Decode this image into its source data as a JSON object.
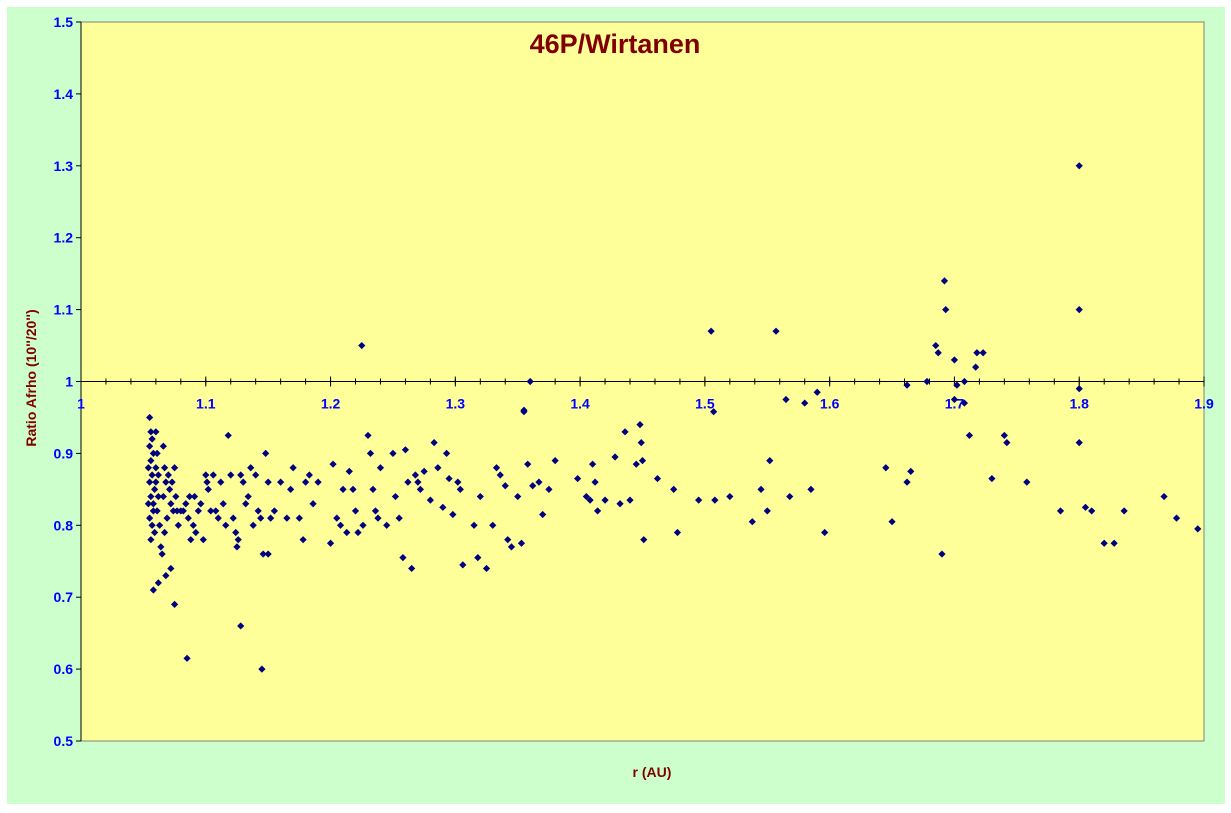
{
  "chart_data": {
    "type": "scatter",
    "title": "46P/Wirtanen",
    "xlabel": "r (AU)",
    "ylabel": "Ratio Afrho (10''/20'')",
    "xlim": [
      1.0,
      1.9
    ],
    "ylim": [
      0.5,
      1.5
    ],
    "x_ticks": [
      "1",
      "1.1",
      "1.2",
      "1.3",
      "1.4",
      "1.5",
      "1.6",
      "1.7",
      "1.8",
      "1.9"
    ],
    "y_ticks": [
      "0.5",
      "0.6",
      "0.7",
      "0.8",
      "0.9",
      "1",
      "1.1",
      "1.2",
      "1.3",
      "1.4",
      "1.5"
    ],
    "x_axis_crosses_at": 1.0,
    "grid": false,
    "colors": {
      "plot_bg": "#ffff99",
      "chart_bg": "#ccffcc",
      "marker": "#000080",
      "tick_text": "#0000ff",
      "title_text": "#800000"
    },
    "points": [
      [
        1.055,
        0.95
      ],
      [
        1.056,
        0.93
      ],
      [
        1.057,
        0.92
      ],
      [
        1.055,
        0.91
      ],
      [
        1.058,
        0.9
      ],
      [
        1.056,
        0.89
      ],
      [
        1.054,
        0.88
      ],
      [
        1.057,
        0.87
      ],
      [
        1.055,
        0.86
      ],
      [
        1.059,
        0.85
      ],
      [
        1.056,
        0.84
      ],
      [
        1.054,
        0.83
      ],
      [
        1.058,
        0.82
      ],
      [
        1.055,
        0.81
      ],
      [
        1.057,
        0.8
      ],
      [
        1.059,
        0.79
      ],
      [
        1.056,
        0.78
      ],
      [
        1.058,
        0.83
      ],
      [
        1.06,
        0.88
      ],
      [
        1.061,
        0.9
      ],
      [
        1.06,
        0.86
      ],
      [
        1.062,
        0.84
      ],
      [
        1.061,
        0.82
      ],
      [
        1.063,
        0.8
      ],
      [
        1.06,
        0.93
      ],
      [
        1.062,
        0.87
      ],
      [
        1.064,
        0.77
      ],
      [
        1.065,
        0.76
      ],
      [
        1.066,
        0.91
      ],
      [
        1.067,
        0.88
      ],
      [
        1.068,
        0.86
      ],
      [
        1.066,
        0.84
      ],
      [
        1.069,
        0.81
      ],
      [
        1.067,
        0.79
      ],
      [
        1.07,
        0.87
      ],
      [
        1.071,
        0.85
      ],
      [
        1.072,
        0.83
      ],
      [
        1.073,
        0.86
      ],
      [
        1.074,
        0.82
      ],
      [
        1.075,
        0.88
      ],
      [
        1.076,
        0.84
      ],
      [
        1.077,
        0.82
      ],
      [
        1.078,
        0.8
      ],
      [
        1.08,
        0.82
      ],
      [
        1.082,
        0.82
      ],
      [
        1.084,
        0.83
      ],
      [
        1.086,
        0.81
      ],
      [
        1.087,
        0.84
      ],
      [
        1.088,
        0.78
      ],
      [
        1.09,
        0.8
      ],
      [
        1.091,
        0.84
      ],
      [
        1.092,
        0.79
      ],
      [
        1.094,
        0.82
      ],
      [
        1.096,
        0.83
      ],
      [
        1.098,
        0.78
      ],
      [
        1.1,
        0.87
      ],
      [
        1.101,
        0.86
      ],
      [
        1.102,
        0.85
      ],
      [
        1.104,
        0.82
      ],
      [
        1.106,
        0.87
      ],
      [
        1.108,
        0.82
      ],
      [
        1.11,
        0.81
      ],
      [
        1.112,
        0.86
      ],
      [
        1.114,
        0.83
      ],
      [
        1.116,
        0.8
      ],
      [
        1.118,
        0.925
      ],
      [
        1.12,
        0.87
      ],
      [
        1.122,
        0.81
      ],
      [
        1.124,
        0.79
      ],
      [
        1.126,
        0.78
      ],
      [
        1.128,
        0.87
      ],
      [
        1.13,
        0.86
      ],
      [
        1.132,
        0.83
      ],
      [
        1.134,
        0.84
      ],
      [
        1.136,
        0.88
      ],
      [
        1.138,
        0.8
      ],
      [
        1.14,
        0.87
      ],
      [
        1.142,
        0.82
      ],
      [
        1.144,
        0.81
      ],
      [
        1.146,
        0.76
      ],
      [
        1.148,
        0.9
      ],
      [
        1.15,
        0.86
      ],
      [
        1.152,
        0.81
      ],
      [
        1.155,
        0.82
      ],
      [
        1.16,
        0.86
      ],
      [
        1.165,
        0.81
      ],
      [
        1.168,
        0.85
      ],
      [
        1.17,
        0.88
      ],
      [
        1.175,
        0.81
      ],
      [
        1.178,
        0.78
      ],
      [
        1.18,
        0.86
      ],
      [
        1.183,
        0.87
      ],
      [
        1.186,
        0.83
      ],
      [
        1.19,
        0.86
      ],
      [
        1.2,
        0.775
      ],
      [
        1.202,
        0.885
      ],
      [
        1.205,
        0.81
      ],
      [
        1.208,
        0.8
      ],
      [
        1.21,
        0.85
      ],
      [
        1.213,
        0.79
      ],
      [
        1.215,
        0.875
      ],
      [
        1.218,
        0.85
      ],
      [
        1.22,
        0.82
      ],
      [
        1.222,
        0.79
      ],
      [
        1.226,
        0.8
      ],
      [
        1.23,
        0.925
      ],
      [
        1.232,
        0.9
      ],
      [
        1.234,
        0.85
      ],
      [
        1.236,
        0.82
      ],
      [
        1.238,
        0.81
      ],
      [
        1.24,
        0.88
      ],
      [
        1.245,
        0.8
      ],
      [
        1.25,
        0.9
      ],
      [
        1.252,
        0.84
      ],
      [
        1.255,
        0.81
      ],
      [
        1.258,
        0.755
      ],
      [
        1.26,
        0.905
      ],
      [
        1.262,
        0.86
      ],
      [
        1.265,
        0.74
      ],
      [
        1.268,
        0.87
      ],
      [
        1.27,
        0.86
      ],
      [
        1.272,
        0.85
      ],
      [
        1.275,
        0.875
      ],
      [
        1.28,
        0.835
      ],
      [
        1.283,
        0.915
      ],
      [
        1.286,
        0.88
      ],
      [
        1.29,
        0.825
      ],
      [
        1.293,
        0.9
      ],
      [
        1.295,
        0.865
      ],
      [
        1.298,
        0.815
      ],
      [
        1.302,
        0.86
      ],
      [
        1.304,
        0.85
      ],
      [
        1.306,
        0.745
      ],
      [
        1.315,
        0.8
      ],
      [
        1.318,
        0.755
      ],
      [
        1.32,
        0.84
      ],
      [
        1.325,
        0.74
      ],
      [
        1.33,
        0.8
      ],
      [
        1.333,
        0.88
      ],
      [
        1.336,
        0.87
      ],
      [
        1.34,
        0.855
      ],
      [
        1.342,
        0.78
      ],
      [
        1.345,
        0.77
      ],
      [
        1.35,
        0.84
      ],
      [
        1.353,
        0.775
      ],
      [
        1.355,
        0.96
      ],
      [
        1.358,
        0.885
      ],
      [
        1.362,
        0.855
      ],
      [
        1.367,
        0.86
      ],
      [
        1.37,
        0.815
      ],
      [
        1.375,
        0.85
      ],
      [
        1.38,
        0.89
      ],
      [
        1.398,
        0.865
      ],
      [
        1.405,
        0.84
      ],
      [
        1.408,
        0.835
      ],
      [
        1.41,
        0.885
      ],
      [
        1.412,
        0.86
      ],
      [
        1.414,
        0.82
      ],
      [
        1.42,
        0.835
      ],
      [
        1.428,
        0.895
      ],
      [
        1.432,
        0.83
      ],
      [
        1.436,
        0.93
      ],
      [
        1.44,
        0.835
      ],
      [
        1.445,
        0.885
      ],
      [
        1.448,
        0.94
      ],
      [
        1.449,
        0.915
      ],
      [
        1.45,
        0.89
      ],
      [
        1.451,
        0.78
      ],
      [
        1.462,
        0.865
      ],
      [
        1.475,
        0.85
      ],
      [
        1.478,
        0.79
      ],
      [
        1.495,
        0.835
      ],
      [
        1.508,
        0.835
      ],
      [
        1.52,
        0.84
      ],
      [
        1.538,
        0.805
      ],
      [
        1.545,
        0.85
      ],
      [
        1.55,
        0.82
      ],
      [
        1.552,
        0.89
      ],
      [
        1.568,
        0.84
      ],
      [
        1.585,
        0.85
      ],
      [
        1.596,
        0.79
      ],
      [
        1.645,
        0.88
      ],
      [
        1.65,
        0.805
      ],
      [
        1.662,
        0.86
      ],
      [
        1.665,
        0.875
      ],
      [
        1.69,
        0.76
      ],
      [
        1.7,
        0.975
      ],
      [
        1.712,
        0.925
      ],
      [
        1.73,
        0.865
      ],
      [
        1.74,
        0.925
      ],
      [
        1.742,
        0.915
      ],
      [
        1.758,
        0.86
      ],
      [
        1.785,
        0.82
      ],
      [
        1.8,
        0.915
      ],
      [
        1.805,
        0.825
      ],
      [
        1.81,
        0.82
      ],
      [
        1.82,
        0.775
      ],
      [
        1.828,
        0.775
      ],
      [
        1.836,
        0.82
      ],
      [
        1.868,
        0.84
      ],
      [
        1.878,
        0.81
      ],
      [
        1.895,
        0.795
      ],
      [
        1.225,
        1.05
      ],
      [
        1.36,
        1.0
      ],
      [
        1.355,
        0.958
      ],
      [
        1.505,
        1.07
      ],
      [
        1.507,
        0.958
      ],
      [
        1.557,
        1.07
      ],
      [
        1.565,
        0.975
      ],
      [
        1.58,
        0.97
      ],
      [
        1.59,
        0.985
      ],
      [
        1.662,
        0.995
      ],
      [
        1.678,
        1.0
      ],
      [
        1.685,
        1.05
      ],
      [
        1.687,
        1.04
      ],
      [
        1.692,
        1.14
      ],
      [
        1.693,
        1.1
      ],
      [
        1.7,
        1.03
      ],
      [
        1.702,
        0.995
      ],
      [
        1.708,
        1.0
      ],
      [
        1.708,
        0.97
      ],
      [
        1.718,
        1.04
      ],
      [
        1.717,
        1.02
      ],
      [
        1.723,
        1.04
      ],
      [
        1.8,
        1.3
      ],
      [
        1.8,
        1.1
      ],
      [
        1.8,
        0.99
      ],
      [
        1.058,
        0.71
      ],
      [
        1.062,
        0.72
      ],
      [
        1.068,
        0.73
      ],
      [
        1.072,
        0.74
      ],
      [
        1.075,
        0.69
      ],
      [
        1.085,
        0.615
      ],
      [
        1.128,
        0.66
      ],
      [
        1.145,
        0.6
      ],
      [
        1.125,
        0.77
      ],
      [
        1.15,
        0.76
      ]
    ]
  }
}
